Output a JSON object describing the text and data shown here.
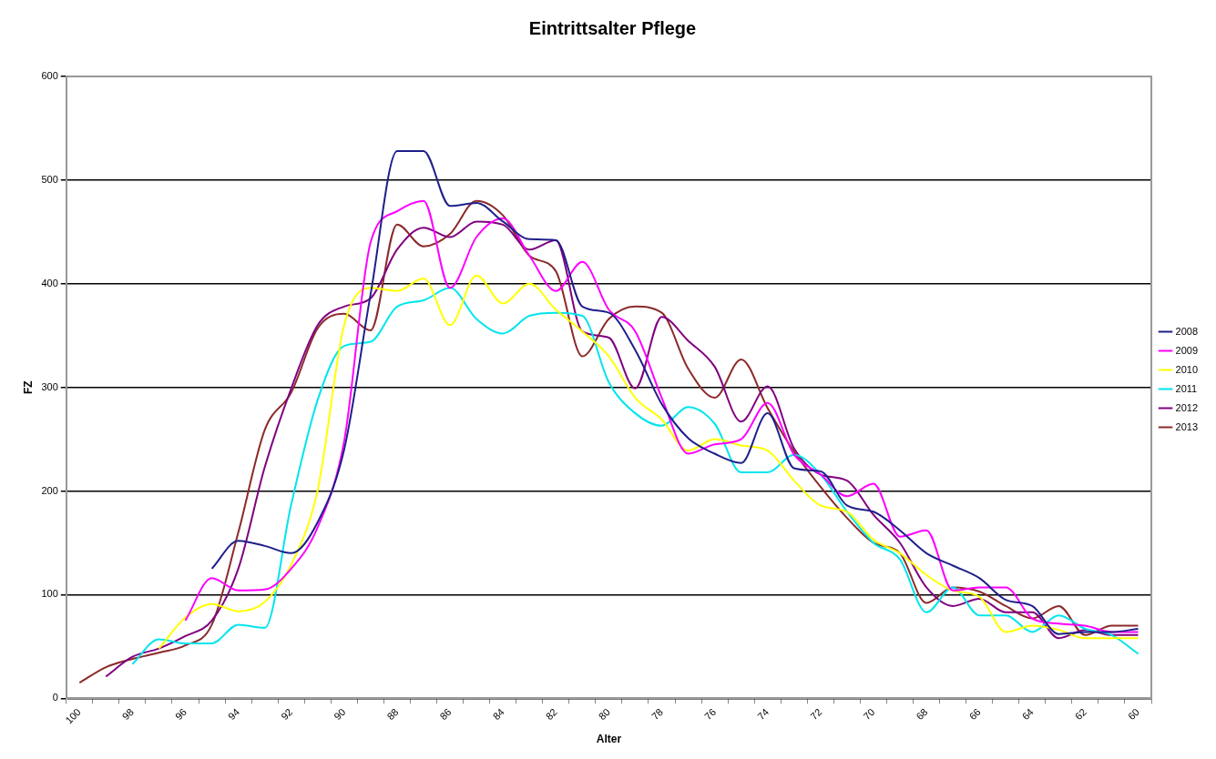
{
  "chart_data": {
    "type": "line",
    "title": "Eintrittsalter Pflege",
    "xlabel": "Alter",
    "ylabel": "FZ",
    "categories": [
      "100",
      null,
      "98",
      null,
      "96",
      null,
      "94",
      null,
      "92",
      null,
      "90",
      null,
      "88",
      null,
      "86",
      null,
      "84",
      null,
      "82",
      null,
      "80",
      null,
      "78",
      null,
      "76",
      null,
      "74",
      null,
      "72",
      null,
      "70",
      null,
      "68",
      null,
      "66",
      null,
      "64",
      null,
      "62",
      null,
      "60"
    ],
    "series": [
      {
        "name": "2008",
        "color": "#1f1f8a",
        "values": [
          null,
          null,
          null,
          null,
          null,
          125,
          152,
          147,
          140,
          170,
          240,
          390,
          528,
          528,
          475,
          478,
          460,
          443,
          442,
          378,
          372,
          336,
          284,
          251,
          236,
          227,
          275,
          222,
          219,
          186,
          180,
          162,
          140,
          128,
          116,
          95,
          89,
          62,
          64,
          64,
          67
        ]
      },
      {
        "name": "2009",
        "color": "#ff00ff",
        "values": [
          null,
          null,
          null,
          null,
          75,
          116,
          104,
          105,
          125,
          165,
          248,
          440,
          470,
          480,
          396,
          445,
          463,
          427,
          393,
          421,
          375,
          354,
          290,
          236,
          245,
          250,
          285,
          235,
          216,
          195,
          207,
          156,
          162,
          104,
          107,
          107,
          77,
          72,
          70,
          64,
          64
        ]
      },
      {
        "name": "2010",
        "color": "#ffff00",
        "values": [
          null,
          null,
          null,
          48,
          78,
          91,
          84,
          93,
          129,
          201,
          360,
          396,
          393,
          405,
          360,
          408,
          381,
          400,
          375,
          354,
          330,
          290,
          269,
          239,
          250,
          244,
          239,
          210,
          186,
          180,
          153,
          140,
          119,
          104,
          98,
          64,
          70,
          66,
          58,
          58,
          58
        ]
      },
      {
        "name": "2011",
        "color": "#00e5ee",
        "values": [
          null,
          null,
          33,
          57,
          53,
          53,
          71,
          68,
          187,
          288,
          340,
          344,
          378,
          384,
          396,
          366,
          352,
          369,
          372,
          369,
          305,
          275,
          263,
          281,
          265,
          218,
          218,
          235,
          216,
          180,
          150,
          134,
          83,
          107,
          80,
          80,
          64,
          80,
          67,
          61,
          43
        ]
      },
      {
        "name": "2012",
        "color": "#800080",
        "values": [
          null,
          21,
          40,
          48,
          60,
          75,
          125,
          223,
          299,
          360,
          378,
          386,
          433,
          454,
          445,
          460,
          457,
          433,
          442,
          354,
          348,
          299,
          368,
          345,
          320,
          267,
          301,
          241,
          216,
          210,
          177,
          150,
          107,
          89,
          96,
          83,
          83,
          58,
          66,
          61,
          61
        ]
      },
      {
        "name": "2013",
        "color": "#8b2a2a",
        "values": [
          15,
          30,
          38,
          44,
          51,
          71,
          160,
          259,
          295,
          357,
          371,
          355,
          457,
          436,
          448,
          480,
          466,
          427,
          412,
          330,
          366,
          378,
          372,
          318,
          290,
          327,
          280,
          238,
          204,
          174,
          150,
          140,
          92,
          107,
          103,
          89,
          77,
          89,
          61,
          70,
          70
        ]
      }
    ],
    "ylim": [
      0,
      600
    ],
    "yticks": [
      0,
      100,
      200,
      300,
      400,
      500,
      600
    ],
    "grid": "y",
    "legend": "right",
    "marker": "none",
    "line_style": "solid"
  }
}
